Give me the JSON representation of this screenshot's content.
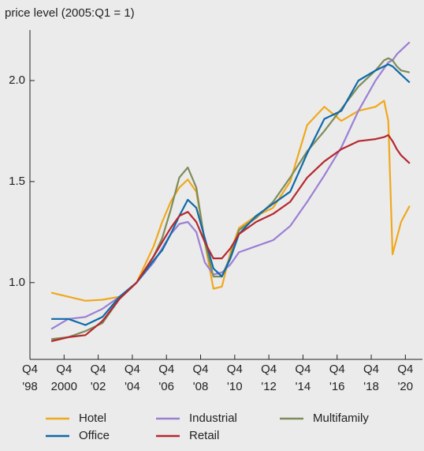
{
  "chart_data": {
    "type": "line",
    "y_label": "price level (2005:Q1 = 1)",
    "x": [
      2000,
      2001,
      2002,
      2003,
      2004,
      2005,
      2006,
      2006.5,
      2007,
      2007.5,
      2008,
      2008.5,
      2009,
      2009.5,
      2010,
      2010.5,
      2011,
      2012,
      2013,
      2014,
      2015,
      2016,
      2017,
      2018,
      2019,
      2019.5,
      2019.75,
      2020,
      2020.25,
      2020.5,
      2021
    ],
    "series": [
      {
        "name": "Hotel",
        "color": "#f0a81c",
        "values": [
          0.95,
          0.93,
          0.91,
          0.915,
          0.93,
          1.0,
          1.18,
          1.3,
          1.4,
          1.47,
          1.51,
          1.45,
          1.2,
          0.97,
          0.98,
          1.15,
          1.27,
          1.33,
          1.37,
          1.5,
          1.78,
          1.87,
          1.8,
          1.85,
          1.87,
          1.9,
          1.8,
          1.14,
          1.22,
          1.3,
          1.38
        ]
      },
      {
        "name": "Industrial",
        "color": "#9b7fd4",
        "values": [
          0.77,
          0.82,
          0.83,
          0.87,
          0.93,
          1.0,
          1.1,
          1.17,
          1.24,
          1.29,
          1.3,
          1.25,
          1.1,
          1.04,
          1.05,
          1.09,
          1.15,
          1.18,
          1.21,
          1.28,
          1.4,
          1.53,
          1.67,
          1.85,
          2.0,
          2.06,
          2.09,
          2.1,
          2.13,
          2.15,
          2.19
        ]
      },
      {
        "name": "Multifamily",
        "color": "#7d8c5a",
        "values": [
          0.72,
          0.73,
          0.76,
          0.8,
          0.92,
          1.0,
          1.13,
          1.22,
          1.36,
          1.52,
          1.57,
          1.47,
          1.2,
          1.03,
          1.03,
          1.13,
          1.26,
          1.32,
          1.4,
          1.52,
          1.65,
          1.75,
          1.86,
          1.97,
          2.05,
          2.1,
          2.11,
          2.1,
          2.07,
          2.05,
          2.04
        ]
      },
      {
        "name": "Office",
        "color": "#0e6aa8",
        "values": [
          0.82,
          0.82,
          0.79,
          0.83,
          0.93,
          1.0,
          1.11,
          1.16,
          1.24,
          1.33,
          1.41,
          1.37,
          1.22,
          1.07,
          1.03,
          1.12,
          1.24,
          1.33,
          1.39,
          1.45,
          1.64,
          1.81,
          1.85,
          2.0,
          2.05,
          2.07,
          2.08,
          2.07,
          2.05,
          2.03,
          1.99
        ]
      },
      {
        "name": "Retail",
        "color": "#b5282e",
        "values": [
          0.71,
          0.73,
          0.74,
          0.81,
          0.92,
          1.0,
          1.13,
          1.2,
          1.27,
          1.33,
          1.35,
          1.3,
          1.2,
          1.12,
          1.12,
          1.17,
          1.24,
          1.3,
          1.34,
          1.4,
          1.52,
          1.6,
          1.66,
          1.7,
          1.71,
          1.72,
          1.73,
          1.7,
          1.66,
          1.63,
          1.59
        ]
      }
    ],
    "xlim": [
      1998.75,
      2021.75
    ],
    "xticks": [
      {
        "value": 1998.75,
        "label": "Q4\n'98"
      },
      {
        "value": 2000.75,
        "label": "Q4\n2000"
      },
      {
        "value": 2002.75,
        "label": "Q4\n'02"
      },
      {
        "value": 2004.75,
        "label": "Q4\n'04"
      },
      {
        "value": 2006.75,
        "label": "Q4\n'06"
      },
      {
        "value": 2008.75,
        "label": "Q4\n'08"
      },
      {
        "value": 2010.75,
        "label": "Q4\n'10"
      },
      {
        "value": 2012.75,
        "label": "Q4\n'12"
      },
      {
        "value": 2014.75,
        "label": "Q4\n'14"
      },
      {
        "value": 2016.75,
        "label": "Q4\n'16"
      },
      {
        "value": 2018.75,
        "label": "Q4\n'18"
      },
      {
        "value": 2020.75,
        "label": "Q4\n'20"
      }
    ],
    "ylim": [
      0.62,
      2.25
    ],
    "yticks": [
      {
        "value": 1,
        "label": "1.0"
      },
      1.5,
      {
        "value": 2,
        "label": "2.0"
      }
    ],
    "legend": "bottom"
  }
}
